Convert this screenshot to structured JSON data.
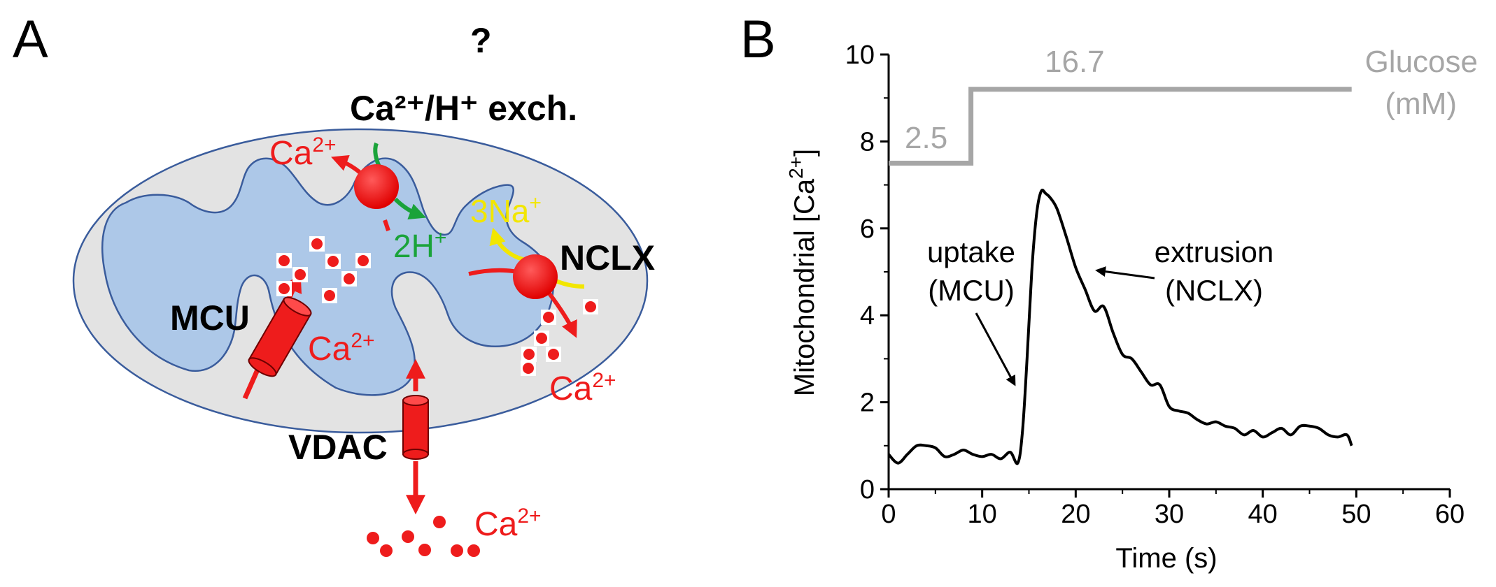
{
  "panel_a": {
    "letter": "A",
    "question_mark": "?",
    "exchanger_label": "Ca²⁺/H⁺ exch.",
    "exchanger_ca": "Ca",
    "exchanger_h": "2H",
    "nclx_label": "NCLX",
    "nclx_na": "3Na",
    "mcu_label": "MCU",
    "mcu_ca": "Ca",
    "vdac_label": "VDAC",
    "nclx_out_ca": "Ca",
    "cyto_ca": "Ca",
    "ion_charge_2": "2+",
    "ion_charge_1": "+",
    "colors": {
      "outer_membrane": "#e3e3e3",
      "matrix": "#adc8e8",
      "membrane_line": "#3a5c9c",
      "calcium": "#ee1c1c",
      "proton": "#1aa33a",
      "sodium": "#f2e600"
    }
  },
  "panel_b": {
    "letter": "B",
    "ylabel_main": "Mitochondrial [Ca",
    "ylabel_sup": "2+",
    "ylabel_close": "]",
    "xlabel": "Time (s)",
    "glucose_label_1": "Glucose",
    "glucose_label_2": "(mM)",
    "glucose_low": "2.5",
    "glucose_high": "16.7",
    "uptake_1": "uptake",
    "uptake_2": "(MCU)",
    "extrusion_1": "extrusion",
    "extrusion_2": "(NCLX)",
    "x_ticks": [
      "0",
      "10",
      "20",
      "30",
      "40",
      "50",
      "60"
    ],
    "y_ticks": [
      "0",
      "2",
      "4",
      "6",
      "8",
      "10"
    ]
  },
  "chart_data": {
    "type": "line",
    "xlabel": "Time (s)",
    "ylabel": "Mitochondrial [Ca2+]",
    "xlim": [
      0,
      60
    ],
    "ylim": [
      0,
      10
    ],
    "grid": false,
    "series": [
      {
        "name": "",
        "color": "#000000",
        "x": [
          0,
          1,
          2,
          3,
          4,
          5,
          6,
          7,
          8,
          9,
          10,
          11,
          12,
          13,
          13.8,
          14.3,
          14.8,
          15.3,
          15.8,
          16.3,
          16.8,
          17.3,
          18,
          19,
          20,
          21,
          22,
          23,
          24,
          25,
          26,
          27,
          28,
          29,
          30,
          31,
          32,
          33,
          34,
          35,
          36,
          37,
          38,
          39,
          40,
          41,
          42,
          43,
          44,
          45,
          46,
          47,
          48,
          49,
          49.5
        ],
        "y": [
          0.8,
          0.6,
          0.8,
          1.0,
          1.0,
          0.95,
          0.75,
          0.8,
          0.9,
          0.8,
          0.75,
          0.8,
          0.7,
          0.85,
          0.6,
          1.3,
          3.0,
          5.0,
          6.3,
          6.85,
          6.8,
          6.7,
          6.45,
          5.8,
          5.1,
          4.6,
          4.1,
          4.2,
          3.6,
          3.1,
          3.0,
          2.7,
          2.4,
          2.4,
          1.9,
          1.8,
          1.75,
          1.6,
          1.5,
          1.55,
          1.45,
          1.4,
          1.25,
          1.35,
          1.2,
          1.3,
          1.4,
          1.25,
          1.45,
          1.45,
          1.4,
          1.25,
          1.2,
          1.25,
          1.0
        ]
      }
    ],
    "glucose_trace": {
      "name": "Glucose (mM)",
      "color": "#a6a6a6",
      "x": [
        0,
        8.8,
        8.8,
        49.5
      ],
      "y": [
        7.5,
        7.5,
        9.2,
        9.2
      ],
      "levels": [
        "2.5",
        "16.7"
      ]
    }
  }
}
